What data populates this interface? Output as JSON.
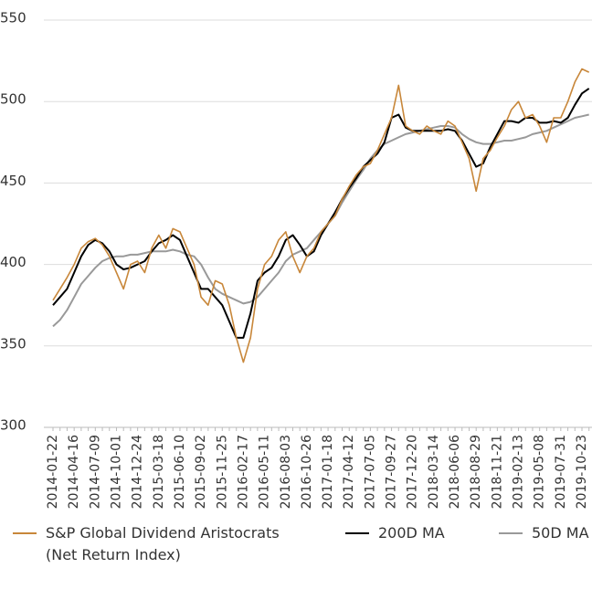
{
  "chart_data": {
    "type": "line",
    "categories": [
      "2014-01-22",
      null,
      null,
      "2014-04-16",
      null,
      null,
      "2014-07-09",
      null,
      null,
      "2014-10-01",
      null,
      null,
      "2014-12-24",
      null,
      null,
      "2015-03-18",
      null,
      null,
      "2015-06-10",
      null,
      null,
      "2015-09-02",
      null,
      null,
      "2015-11-25",
      null,
      null,
      "2016-02-17",
      null,
      null,
      "2016-05-11",
      null,
      null,
      "2016-08-03",
      null,
      null,
      "2016-10-26",
      null,
      null,
      "2017-01-18",
      null,
      null,
      "2017-04-12",
      null,
      null,
      "2017-07-05",
      null,
      null,
      "2017-09-27",
      null,
      null,
      "2017-12-20",
      null,
      null,
      "2018-03-14",
      null,
      null,
      "2018-06-06",
      null,
      null,
      "2018-08-29",
      null,
      null,
      "2018-11-21",
      null,
      null,
      "2019-02-13",
      null,
      null,
      "2019-05-08",
      null,
      null,
      "2019-07-31",
      null,
      null,
      "2019-10-23",
      null
    ],
    "series": [
      {
        "name": "S&P Global Dividend Aristocrats (Net Return Index)",
        "color": "#c8873a",
        "values": [
          378,
          385,
          392,
          400,
          410,
          414,
          416,
          412,
          405,
          395,
          385,
          400,
          402,
          395,
          410,
          418,
          410,
          422,
          420,
          410,
          400,
          380,
          375,
          390,
          388,
          375,
          355,
          340,
          355,
          385,
          400,
          405,
          415,
          420,
          405,
          395,
          405,
          410,
          420,
          425,
          430,
          440,
          448,
          455,
          460,
          462,
          470,
          480,
          490,
          510,
          485,
          482,
          480,
          485,
          482,
          480,
          488,
          485,
          475,
          465,
          445,
          465,
          470,
          478,
          485,
          495,
          500,
          490,
          492,
          485,
          475,
          490,
          490,
          500,
          512,
          520,
          518
        ]
      },
      {
        "name": "200D MA",
        "color": "#000000",
        "values": [
          375,
          380,
          385,
          395,
          405,
          412,
          415,
          413,
          408,
          400,
          397,
          398,
          400,
          402,
          408,
          413,
          415,
          418,
          415,
          405,
          395,
          385,
          385,
          380,
          375,
          365,
          355,
          355,
          370,
          390,
          395,
          398,
          405,
          415,
          418,
          412,
          405,
          408,
          418,
          425,
          432,
          440,
          447,
          453,
          460,
          464,
          468,
          475,
          490,
          492,
          484,
          482,
          482,
          482,
          482,
          482,
          483,
          482,
          476,
          468,
          460,
          462,
          472,
          480,
          488,
          488,
          487,
          490,
          490,
          487,
          487,
          488,
          487,
          490,
          498,
          505,
          508
        ]
      },
      {
        "name": "50D MA",
        "color": "#999999",
        "values": [
          362,
          366,
          372,
          380,
          388,
          393,
          398,
          402,
          404,
          405,
          405,
          406,
          406,
          407,
          408,
          408,
          408,
          409,
          408,
          406,
          405,
          400,
          392,
          385,
          382,
          380,
          378,
          376,
          377,
          380,
          385,
          390,
          395,
          402,
          406,
          408,
          410,
          415,
          420,
          425,
          430,
          438,
          445,
          452,
          458,
          465,
          470,
          474,
          476,
          478,
          480,
          481,
          482,
          483,
          484,
          485,
          485,
          484,
          480,
          477,
          475,
          474,
          474,
          475,
          476,
          476,
          477,
          478,
          480,
          481,
          482,
          484,
          486,
          488,
          490,
          491,
          492
        ]
      }
    ],
    "ylim": [
      300,
      550
    ],
    "yticks": [
      300,
      350,
      400,
      450,
      500,
      550
    ],
    "grid": true
  }
}
